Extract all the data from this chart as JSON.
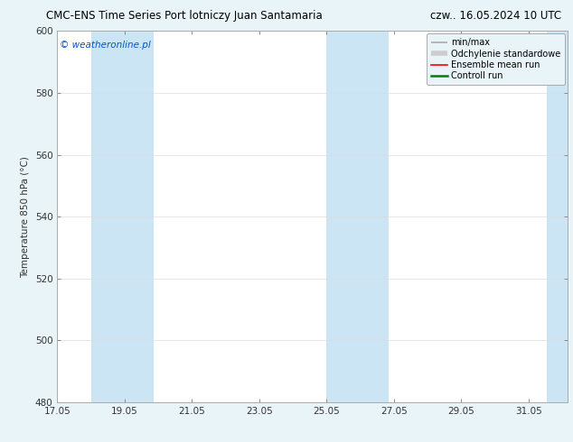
{
  "title": "CMC-ENS Time Series Port lotniczy Juan Santamaria",
  "title_right": "czw.. 16.05.2024 10 UTC",
  "ylabel": "Temperature 850 hPa (°C)",
  "watermark": "© weatheronline.pl",
  "watermark_color": "#0055cc",
  "ylim": [
    480,
    600
  ],
  "yticks": [
    480,
    500,
    520,
    540,
    560,
    580,
    600
  ],
  "xmin": 17.05,
  "xmax": 32.2,
  "xticks": [
    17.05,
    19.05,
    21.05,
    23.05,
    25.05,
    27.05,
    29.05,
    31.05
  ],
  "xlabels": [
    "17.05",
    "19.05",
    "21.05",
    "23.05",
    "25.05",
    "27.05",
    "29.05",
    "31.05"
  ],
  "bg_color": "#e8f4f8",
  "plot_bg_color": "#ffffff",
  "shaded_bands": [
    {
      "xmin": 18.05,
      "xmax": 19.9,
      "color": "#cce5f5"
    },
    {
      "xmin": 25.05,
      "xmax": 26.9,
      "color": "#cce5f5"
    },
    {
      "xmin": 31.6,
      "xmax": 32.2,
      "color": "#cce5f5"
    }
  ],
  "legend_entries": [
    {
      "label": "min/max",
      "color": "#aaaaaa",
      "lw": 1.2,
      "ls": "-"
    },
    {
      "label": "Odchylenie standardowe",
      "color": "#cccccc",
      "lw": 4,
      "ls": "-"
    },
    {
      "label": "Ensemble mean run",
      "color": "#ff0000",
      "lw": 1.2,
      "ls": "-"
    },
    {
      "label": "Controll run",
      "color": "#008000",
      "lw": 1.8,
      "ls": "-"
    }
  ],
  "tick_fontsize": 7.5,
  "label_fontsize": 7.5,
  "title_fontsize": 8.5,
  "grid_color": "#dddddd",
  "border_color": "#aaaaaa",
  "legend_fontsize": 7.0,
  "legend_bg": "#e8f4f8",
  "legend_edge": "#aaaaaa"
}
